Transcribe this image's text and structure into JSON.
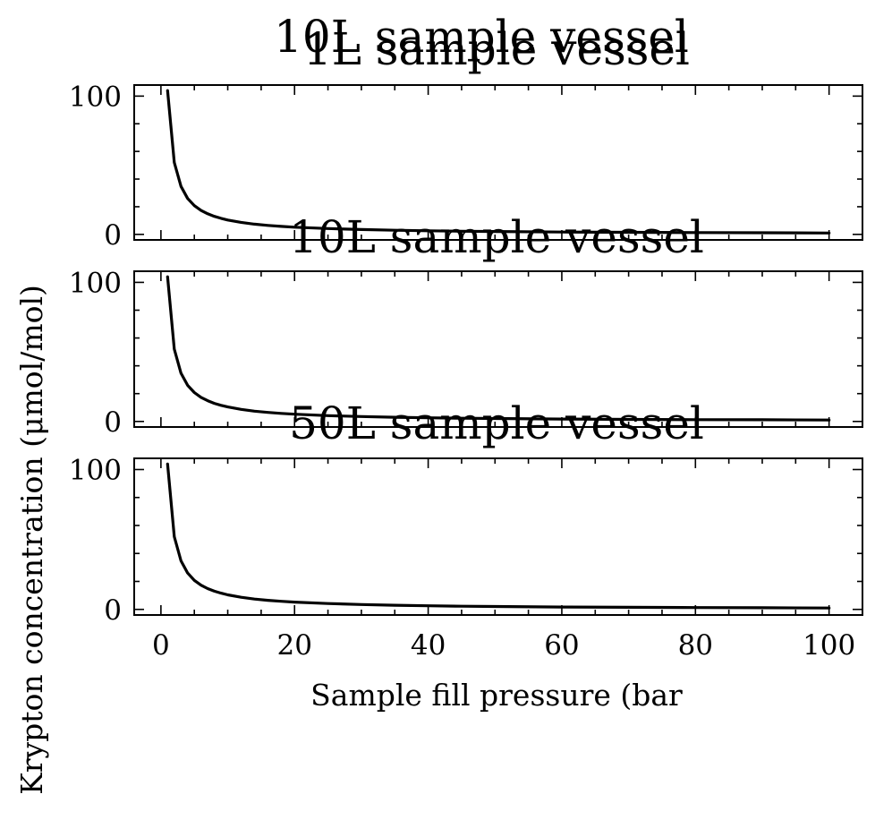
{
  "figure_titles": [
    "10L sample vessel"
  ],
  "chart_data": {
    "type": "line",
    "shared_xlabel": "Sample fill pressure (bar",
    "shared_ylabel": "Krypton concentration (μmol/mol)",
    "xlim": [
      -4,
      105
    ],
    "xticks": [
      0,
      20,
      40,
      60,
      80,
      100
    ],
    "x_minor_step": 5,
    "grid": false,
    "panels": [
      {
        "title": "1L sample vessel",
        "ylim": [
          -4,
          108
        ],
        "yticks": [
          0,
          100
        ],
        "y_minor_step": 20,
        "series": [
          {
            "x": [
              1,
              2,
              3,
              4,
              5,
              6,
              7,
              8,
              9,
              10,
              12,
              14,
              16,
              18,
              20,
              25,
              30,
              35,
              40,
              45,
              50,
              60,
              70,
              80,
              90,
              100
            ],
            "y": [
              104,
              52,
              34.7,
              26,
              20.8,
              17.3,
              14.9,
              13,
              11.6,
              10.4,
              8.7,
              7.4,
              6.5,
              5.8,
              5.2,
              4.2,
              3.5,
              3.0,
              2.6,
              2.3,
              2.1,
              1.7,
              1.5,
              1.3,
              1.2,
              1.0
            ]
          }
        ]
      },
      {
        "title": "10L sample vessel",
        "ylim": [
          -4,
          108
        ],
        "yticks": [
          0,
          100
        ],
        "y_minor_step": 20,
        "series": [
          {
            "x": [
              1,
              2,
              3,
              4,
              5,
              6,
              7,
              8,
              9,
              10,
              12,
              14,
              16,
              18,
              20,
              25,
              30,
              35,
              40,
              45,
              50,
              60,
              70,
              80,
              90,
              100
            ],
            "y": [
              104,
              52,
              34.7,
              26,
              20.8,
              17.3,
              14.9,
              13,
              11.6,
              10.4,
              8.7,
              7.4,
              6.5,
              5.8,
              5.2,
              4.2,
              3.5,
              3.0,
              2.6,
              2.3,
              2.1,
              1.7,
              1.5,
              1.3,
              1.2,
              1.0
            ]
          }
        ]
      },
      {
        "title": "50L sample vessel",
        "ylim": [
          -4,
          108
        ],
        "yticks": [
          0,
          100
        ],
        "y_minor_step": 20,
        "series": [
          {
            "x": [
              1,
              2,
              3,
              4,
              5,
              6,
              7,
              8,
              9,
              10,
              12,
              14,
              16,
              18,
              20,
              25,
              30,
              35,
              40,
              45,
              50,
              60,
              70,
              80,
              90,
              100
            ],
            "y": [
              104,
              52,
              34.7,
              26,
              20.8,
              17.3,
              14.9,
              13,
              11.6,
              10.4,
              8.7,
              7.4,
              6.5,
              5.8,
              5.2,
              4.2,
              3.5,
              3.0,
              2.6,
              2.3,
              2.1,
              1.7,
              1.5,
              1.3,
              1.2,
              1.0
            ]
          }
        ]
      }
    ]
  }
}
